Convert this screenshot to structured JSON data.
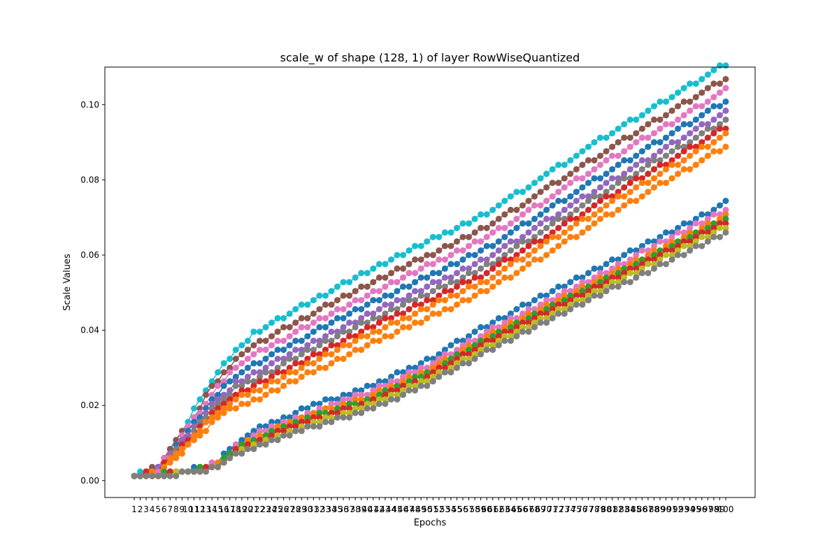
{
  "chart_data": {
    "type": "line",
    "title": "scale_w of shape (128, 1) of layer RowWiseQuantized",
    "xlabel": "Epochs",
    "ylabel": "Scale Values",
    "xlim": [
      1,
      100
    ],
    "ylim": [
      -0.0045,
      0.11
    ],
    "yticks": [
      "0.00",
      "0.02",
      "0.04",
      "0.06",
      "0.08",
      "0.10"
    ],
    "x": [
      1,
      2,
      3,
      4,
      5,
      6,
      7,
      8,
      9,
      10,
      11,
      12,
      13,
      14,
      15,
      16,
      17,
      18,
      19,
      20,
      21,
      22,
      23,
      24,
      25,
      26,
      27,
      28,
      29,
      30,
      31,
      32,
      33,
      34,
      35,
      36,
      37,
      38,
      39,
      40,
      41,
      42,
      43,
      44,
      45,
      46,
      47,
      48,
      49,
      50,
      51,
      52,
      53,
      54,
      55,
      56,
      57,
      58,
      59,
      60,
      61,
      62,
      63,
      64,
      65,
      66,
      67,
      68,
      69,
      70,
      71,
      72,
      73,
      74,
      75,
      76,
      77,
      78,
      79,
      80,
      81,
      82,
      83,
      84,
      85,
      86,
      87,
      88,
      89,
      90,
      91,
      92,
      93,
      94,
      95,
      96,
      97,
      98,
      99,
      100
    ],
    "x_tick_labels": [
      "1",
      "2",
      "3",
      "4",
      "5",
      "6",
      "7",
      "8",
      "9",
      "10",
      "11",
      "12",
      "13",
      "14",
      "15",
      "16",
      "17",
      "18",
      "19",
      "20",
      "21",
      "22",
      "23",
      "24",
      "25",
      "26",
      "27",
      "28",
      "29",
      "30",
      "31",
      "32",
      "33",
      "34",
      "35",
      "36",
      "37",
      "38",
      "39",
      "40",
      "41",
      "42",
      "43",
      "44",
      "45",
      "46",
      "47",
      "48",
      "49",
      "50",
      "51",
      "52",
      "53",
      "54",
      "55",
      "56",
      "57",
      "58",
      "59",
      "60",
      "61",
      "62",
      "63",
      "64",
      "65",
      "66",
      "67",
      "68",
      "69",
      "70",
      "71",
      "72",
      "73",
      "74",
      "75",
      "76",
      "77",
      "78",
      "79",
      "80",
      "81",
      "82",
      "83",
      "84",
      "85",
      "86",
      "87",
      "88",
      "89",
      "90",
      "91",
      "92",
      "93",
      "94",
      "95",
      "96",
      "97",
      "98",
      "99",
      "100"
    ],
    "marker": "o",
    "grid": false,
    "legend": "none",
    "series_groups": [
      {
        "group": "upper band",
        "start": 0.001,
        "waypoints": [
          [
            1,
            0.001
          ],
          [
            5,
            0.003
          ],
          [
            10,
            0.012
          ],
          [
            14,
            0.02
          ],
          [
            18,
            0.026
          ],
          [
            24,
            0.031
          ],
          [
            30,
            0.036
          ],
          [
            40,
            0.044
          ],
          [
            60,
            0.059
          ],
          [
            80,
            0.079
          ],
          [
            100,
            0.098
          ]
        ],
        "offsets": [
          0.0065,
          0.0045,
          0.003,
          0.0015,
          0.0,
          -0.001,
          -0.002,
          -0.003,
          -0.0045
        ],
        "colors": [
          "#17becf",
          "#8c564b",
          "#e377c2",
          "#1f77b4",
          "#9467bd",
          "#7f7f7f",
          "#d62728",
          "#ff7f0e",
          "#ff7f0e"
        ]
      },
      {
        "group": "lower band",
        "start": 0.001,
        "waypoints": [
          [
            1,
            0.001
          ],
          [
            5,
            0.0017
          ],
          [
            10,
            0.0022
          ],
          [
            15,
            0.004
          ],
          [
            18,
            0.008
          ],
          [
            22,
            0.011
          ],
          [
            30,
            0.016
          ],
          [
            40,
            0.021
          ],
          [
            50,
            0.028
          ],
          [
            60,
            0.037
          ],
          [
            80,
            0.053
          ],
          [
            100,
            0.069
          ]
        ],
        "offsets": [
          0.0025,
          0.0015,
          0.0008,
          0.0003,
          -0.0002,
          -0.0008,
          -0.0015
        ],
        "colors": [
          "#1f77b4",
          "#e377c2",
          "#ff7f0e",
          "#2ca02c",
          "#d62728",
          "#bcbd22",
          "#7f7f7f"
        ]
      }
    ]
  }
}
